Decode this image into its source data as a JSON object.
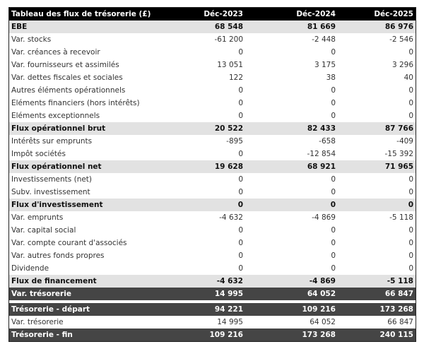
{
  "header": {
    "title": "Tableau des flux de trésorerie (£)",
    "cols": [
      "Déc-2023",
      "Déc-2024",
      "Déc-2025"
    ]
  },
  "rows": [
    {
      "label": "EBE",
      "values": [
        "68 548",
        "81 669",
        "86 976"
      ],
      "style": "sub"
    },
    {
      "label": "Var. stocks",
      "values": [
        "-61 200",
        "-2 448",
        "-2 546"
      ],
      "style": "normal"
    },
    {
      "label": "Var. créances à recevoir",
      "values": [
        "0",
        "0",
        "0"
      ],
      "style": "normal"
    },
    {
      "label": "Var. fournisseurs et assimilés",
      "values": [
        "13 051",
        "3 175",
        "3 296"
      ],
      "style": "normal"
    },
    {
      "label": "Var. dettes fiscales et sociales",
      "values": [
        "122",
        "38",
        "40"
      ],
      "style": "normal"
    },
    {
      "label": "Autres éléments opérationnels",
      "values": [
        "0",
        "0",
        "0"
      ],
      "style": "normal"
    },
    {
      "label": "Eléments financiers (hors intérêts)",
      "values": [
        "0",
        "0",
        "0"
      ],
      "style": "normal"
    },
    {
      "label": "Eléments exceptionnels",
      "values": [
        "0",
        "0",
        "0"
      ],
      "style": "normal"
    },
    {
      "label": "Flux opérationnel brut",
      "values": [
        "20 522",
        "82 433",
        "87 766"
      ],
      "style": "sub"
    },
    {
      "label": "Intérêts sur emprunts",
      "values": [
        "-895",
        "-658",
        "-409"
      ],
      "style": "normal"
    },
    {
      "label": "Impôt sociétés",
      "values": [
        "0",
        "-12 854",
        "-15 392"
      ],
      "style": "normal"
    },
    {
      "label": "Flux opérationnel net",
      "values": [
        "19 628",
        "68 921",
        "71 965"
      ],
      "style": "sub"
    },
    {
      "label": "Investissements (net)",
      "values": [
        "0",
        "0",
        "0"
      ],
      "style": "normal"
    },
    {
      "label": "Subv. investissement",
      "values": [
        "0",
        "0",
        "0"
      ],
      "style": "normal"
    },
    {
      "label": "Flux d'investissement",
      "values": [
        "0",
        "0",
        "0"
      ],
      "style": "sub"
    },
    {
      "label": "Var. emprunts",
      "values": [
        "-4 632",
        "-4 869",
        "-5 118"
      ],
      "style": "normal"
    },
    {
      "label": "Var. capital social",
      "values": [
        "0",
        "0",
        "0"
      ],
      "style": "normal"
    },
    {
      "label": "Var. compte courant d'associés",
      "values": [
        "0",
        "0",
        "0"
      ],
      "style": "normal"
    },
    {
      "label": "Var. autres fonds propres",
      "values": [
        "0",
        "0",
        "0"
      ],
      "style": "normal"
    },
    {
      "label": "Dividende",
      "values": [
        "0",
        "0",
        "0"
      ],
      "style": "normal"
    },
    {
      "label": "Flux de financement",
      "values": [
        "-4 632",
        "-4 869",
        "-5 118"
      ],
      "style": "sub"
    },
    {
      "label": "Var. trésorerie",
      "values": [
        "14 995",
        "64 052",
        "66 847"
      ],
      "style": "dark"
    }
  ],
  "summary": [
    {
      "label": "Trésorerie - départ",
      "values": [
        "94 221",
        "109 216",
        "173 268"
      ],
      "style": "dark"
    },
    {
      "label": "Var. trésorerie",
      "values": [
        "14 995",
        "64 052",
        "66 847"
      ],
      "style": "normal"
    },
    {
      "label": "Trésorerie - fin",
      "values": [
        "109 216",
        "173 268",
        "240 115"
      ],
      "style": "dark"
    }
  ]
}
